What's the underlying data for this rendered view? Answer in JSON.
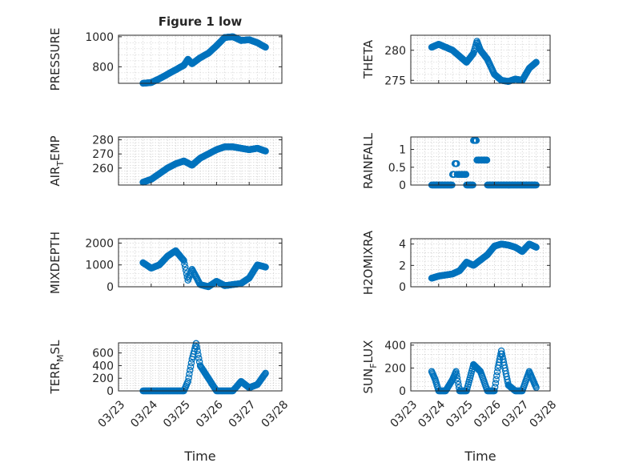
{
  "chart_data": [
    {
      "type": "scatter",
      "title": "Figure 1 low",
      "ylabel": "PRESSURE",
      "xlabel": "",
      "ylim": [
        690,
        1010
      ],
      "yticks": [
        800,
        1000
      ],
      "x": [
        "03/23 18:00",
        "03/24 00:00",
        "03/24 06:00",
        "03/24 12:00",
        "03/24 18:00",
        "03/25 00:00",
        "03/25 03:00",
        "03/25 06:00",
        "03/25 12:00",
        "03/25 18:00",
        "03/26 00:00",
        "03/26 06:00",
        "03/26 12:00",
        "03/26 18:00",
        "03/27 00:00",
        "03/27 06:00",
        "03/27 12:00"
      ],
      "y": [
        690,
        695,
        720,
        750,
        780,
        810,
        850,
        820,
        860,
        890,
        940,
        995,
        1000,
        975,
        980,
        960,
        930
      ]
    },
    {
      "type": "scatter",
      "title": "",
      "ylabel": "THETA",
      "xlabel": "",
      "ylim": [
        274.5,
        282.5
      ],
      "yticks": [
        275,
        280
      ],
      "x": [
        "03/23 18:00",
        "03/24 00:00",
        "03/24 06:00",
        "03/24 12:00",
        "03/24 18:00",
        "03/25 00:00",
        "03/25 06:00",
        "03/25 09:00",
        "03/25 12:00",
        "03/25 18:00",
        "03/26 00:00",
        "03/26 06:00",
        "03/26 12:00",
        "03/26 18:00",
        "03/27 00:00",
        "03/27 06:00",
        "03/27 12:00"
      ],
      "y": [
        280.5,
        281.0,
        280.5,
        280.0,
        279.0,
        278.0,
        279.5,
        281.5,
        280.0,
        278.5,
        276.0,
        275.0,
        274.8,
        275.2,
        275.0,
        277.0,
        278.0
      ]
    },
    {
      "type": "scatter",
      "title": "",
      "ylabel": "AIR_TEMP",
      "xlabel": "",
      "ylim": [
        248,
        282
      ],
      "yticks": [
        260,
        270,
        280
      ],
      "x": [
        "03/23 18:00",
        "03/24 00:00",
        "03/24 06:00",
        "03/24 12:00",
        "03/24 18:00",
        "03/25 00:00",
        "03/25 06:00",
        "03/25 12:00",
        "03/25 18:00",
        "03/26 00:00",
        "03/26 06:00",
        "03/26 12:00",
        "03/26 18:00",
        "03/27 00:00",
        "03/27 06:00",
        "03/27 12:00"
      ],
      "y": [
        250,
        252,
        256,
        260,
        263,
        265,
        262,
        267,
        270,
        273,
        275,
        275,
        274,
        273,
        274,
        272
      ]
    },
    {
      "type": "scatter",
      "title": "",
      "ylabel": "RAINFALL",
      "xlabel": "",
      "ylim": [
        0,
        1.35
      ],
      "yticks": [
        0,
        0.5,
        1
      ],
      "x": [
        "03/23 18:00",
        "03/24 00:00",
        "03/24 06:00",
        "03/24 12:00",
        "03/24 14:00",
        "03/24 16:00",
        "03/24 18:00",
        "03/24 20:00",
        "03/25 00:00",
        "03/25 06:00",
        "03/25 09:00",
        "03/25 18:00",
        "03/26 00:00",
        "03/26 06:00",
        "03/26 12:00",
        "03/26 18:00",
        "03/27 00:00",
        "03/27 06:00",
        "03/27 12:00"
      ],
      "y": [
        0,
        0,
        0,
        0.3,
        0.6,
        0.3,
        0.3,
        0.3,
        0,
        1.25,
        0.7,
        0,
        0,
        0,
        0,
        0,
        0,
        0,
        0
      ]
    },
    {
      "type": "scatter",
      "title": "",
      "ylabel": "MIXDEPTH",
      "xlabel": "",
      "ylim": [
        0,
        2200
      ],
      "yticks": [
        0,
        1000,
        2000
      ],
      "x": [
        "03/23 18:00",
        "03/24 00:00",
        "03/24 06:00",
        "03/24 12:00",
        "03/24 18:00",
        "03/25 00:00",
        "03/25 03:00",
        "03/25 06:00",
        "03/25 12:00",
        "03/25 18:00",
        "03/26 00:00",
        "03/26 06:00",
        "03/26 12:00",
        "03/26 18:00",
        "03/27 00:00",
        "03/27 06:00",
        "03/27 12:00"
      ],
      "y": [
        1100,
        850,
        1000,
        1400,
        1650,
        1200,
        300,
        800,
        100,
        0,
        250,
        50,
        100,
        150,
        400,
        1000,
        900
      ]
    },
    {
      "type": "scatter",
      "title": "",
      "ylabel": "H2OMIXRA",
      "xlabel": "",
      "ylim": [
        0,
        4.5
      ],
      "yticks": [
        0,
        2,
        4
      ],
      "x": [
        "03/23 18:00",
        "03/24 00:00",
        "03/24 06:00",
        "03/24 12:00",
        "03/24 18:00",
        "03/25 00:00",
        "03/25 06:00",
        "03/25 12:00",
        "03/25 18:00",
        "03/26 00:00",
        "03/26 06:00",
        "03/26 12:00",
        "03/26 18:00",
        "03/27 00:00",
        "03/27 06:00",
        "03/27 12:00"
      ],
      "y": [
        0.8,
        1.0,
        1.1,
        1.2,
        1.5,
        2.3,
        2.0,
        2.5,
        3.0,
        3.8,
        4.0,
        3.9,
        3.7,
        3.3,
        4.0,
        3.7
      ]
    },
    {
      "type": "scatter",
      "title": "",
      "ylabel": "TERR_MSL",
      "xlabel": "Time",
      "ylim": [
        0,
        760
      ],
      "yticks": [
        0,
        200,
        400,
        600
      ],
      "xticks": [
        "03/23",
        "03/24",
        "03/25",
        "03/26",
        "03/27",
        "03/28"
      ],
      "x": [
        "03/23 18:00",
        "03/24 00:00",
        "03/24 12:00",
        "03/25 00:00",
        "03/25 03:00",
        "03/25 06:00",
        "03/25 09:00",
        "03/25 12:00",
        "03/25 18:00",
        "03/26 00:00",
        "03/26 06:00",
        "03/26 12:00",
        "03/26 18:00",
        "03/27 00:00",
        "03/27 06:00",
        "03/27 12:00"
      ],
      "y": [
        0,
        0,
        0,
        0,
        150,
        500,
        750,
        400,
        200,
        0,
        0,
        0,
        150,
        50,
        100,
        280
      ]
    },
    {
      "type": "scatter",
      "title": "",
      "ylabel": "SUN_FLUX",
      "xlabel": "Time",
      "ylim": [
        0,
        420
      ],
      "yticks": [
        0,
        200,
        400
      ],
      "xticks": [
        "03/23",
        "03/24",
        "03/25",
        "03/26",
        "03/27",
        "03/28"
      ],
      "x": [
        "03/23 18:00",
        "03/23 21:00",
        "03/24 00:00",
        "03/24 06:00",
        "03/24 12:00",
        "03/24 15:00",
        "03/24 18:00",
        "03/25 00:00",
        "03/25 06:00",
        "03/25 12:00",
        "03/25 18:00",
        "03/26 00:00",
        "03/26 03:00",
        "03/26 06:00",
        "03/26 12:00",
        "03/26 18:00",
        "03/27 00:00",
        "03/27 06:00",
        "03/27 12:00"
      ],
      "y": [
        170,
        100,
        0,
        0,
        100,
        170,
        0,
        0,
        230,
        170,
        0,
        0,
        200,
        350,
        50,
        0,
        0,
        170,
        30
      ]
    }
  ]
}
